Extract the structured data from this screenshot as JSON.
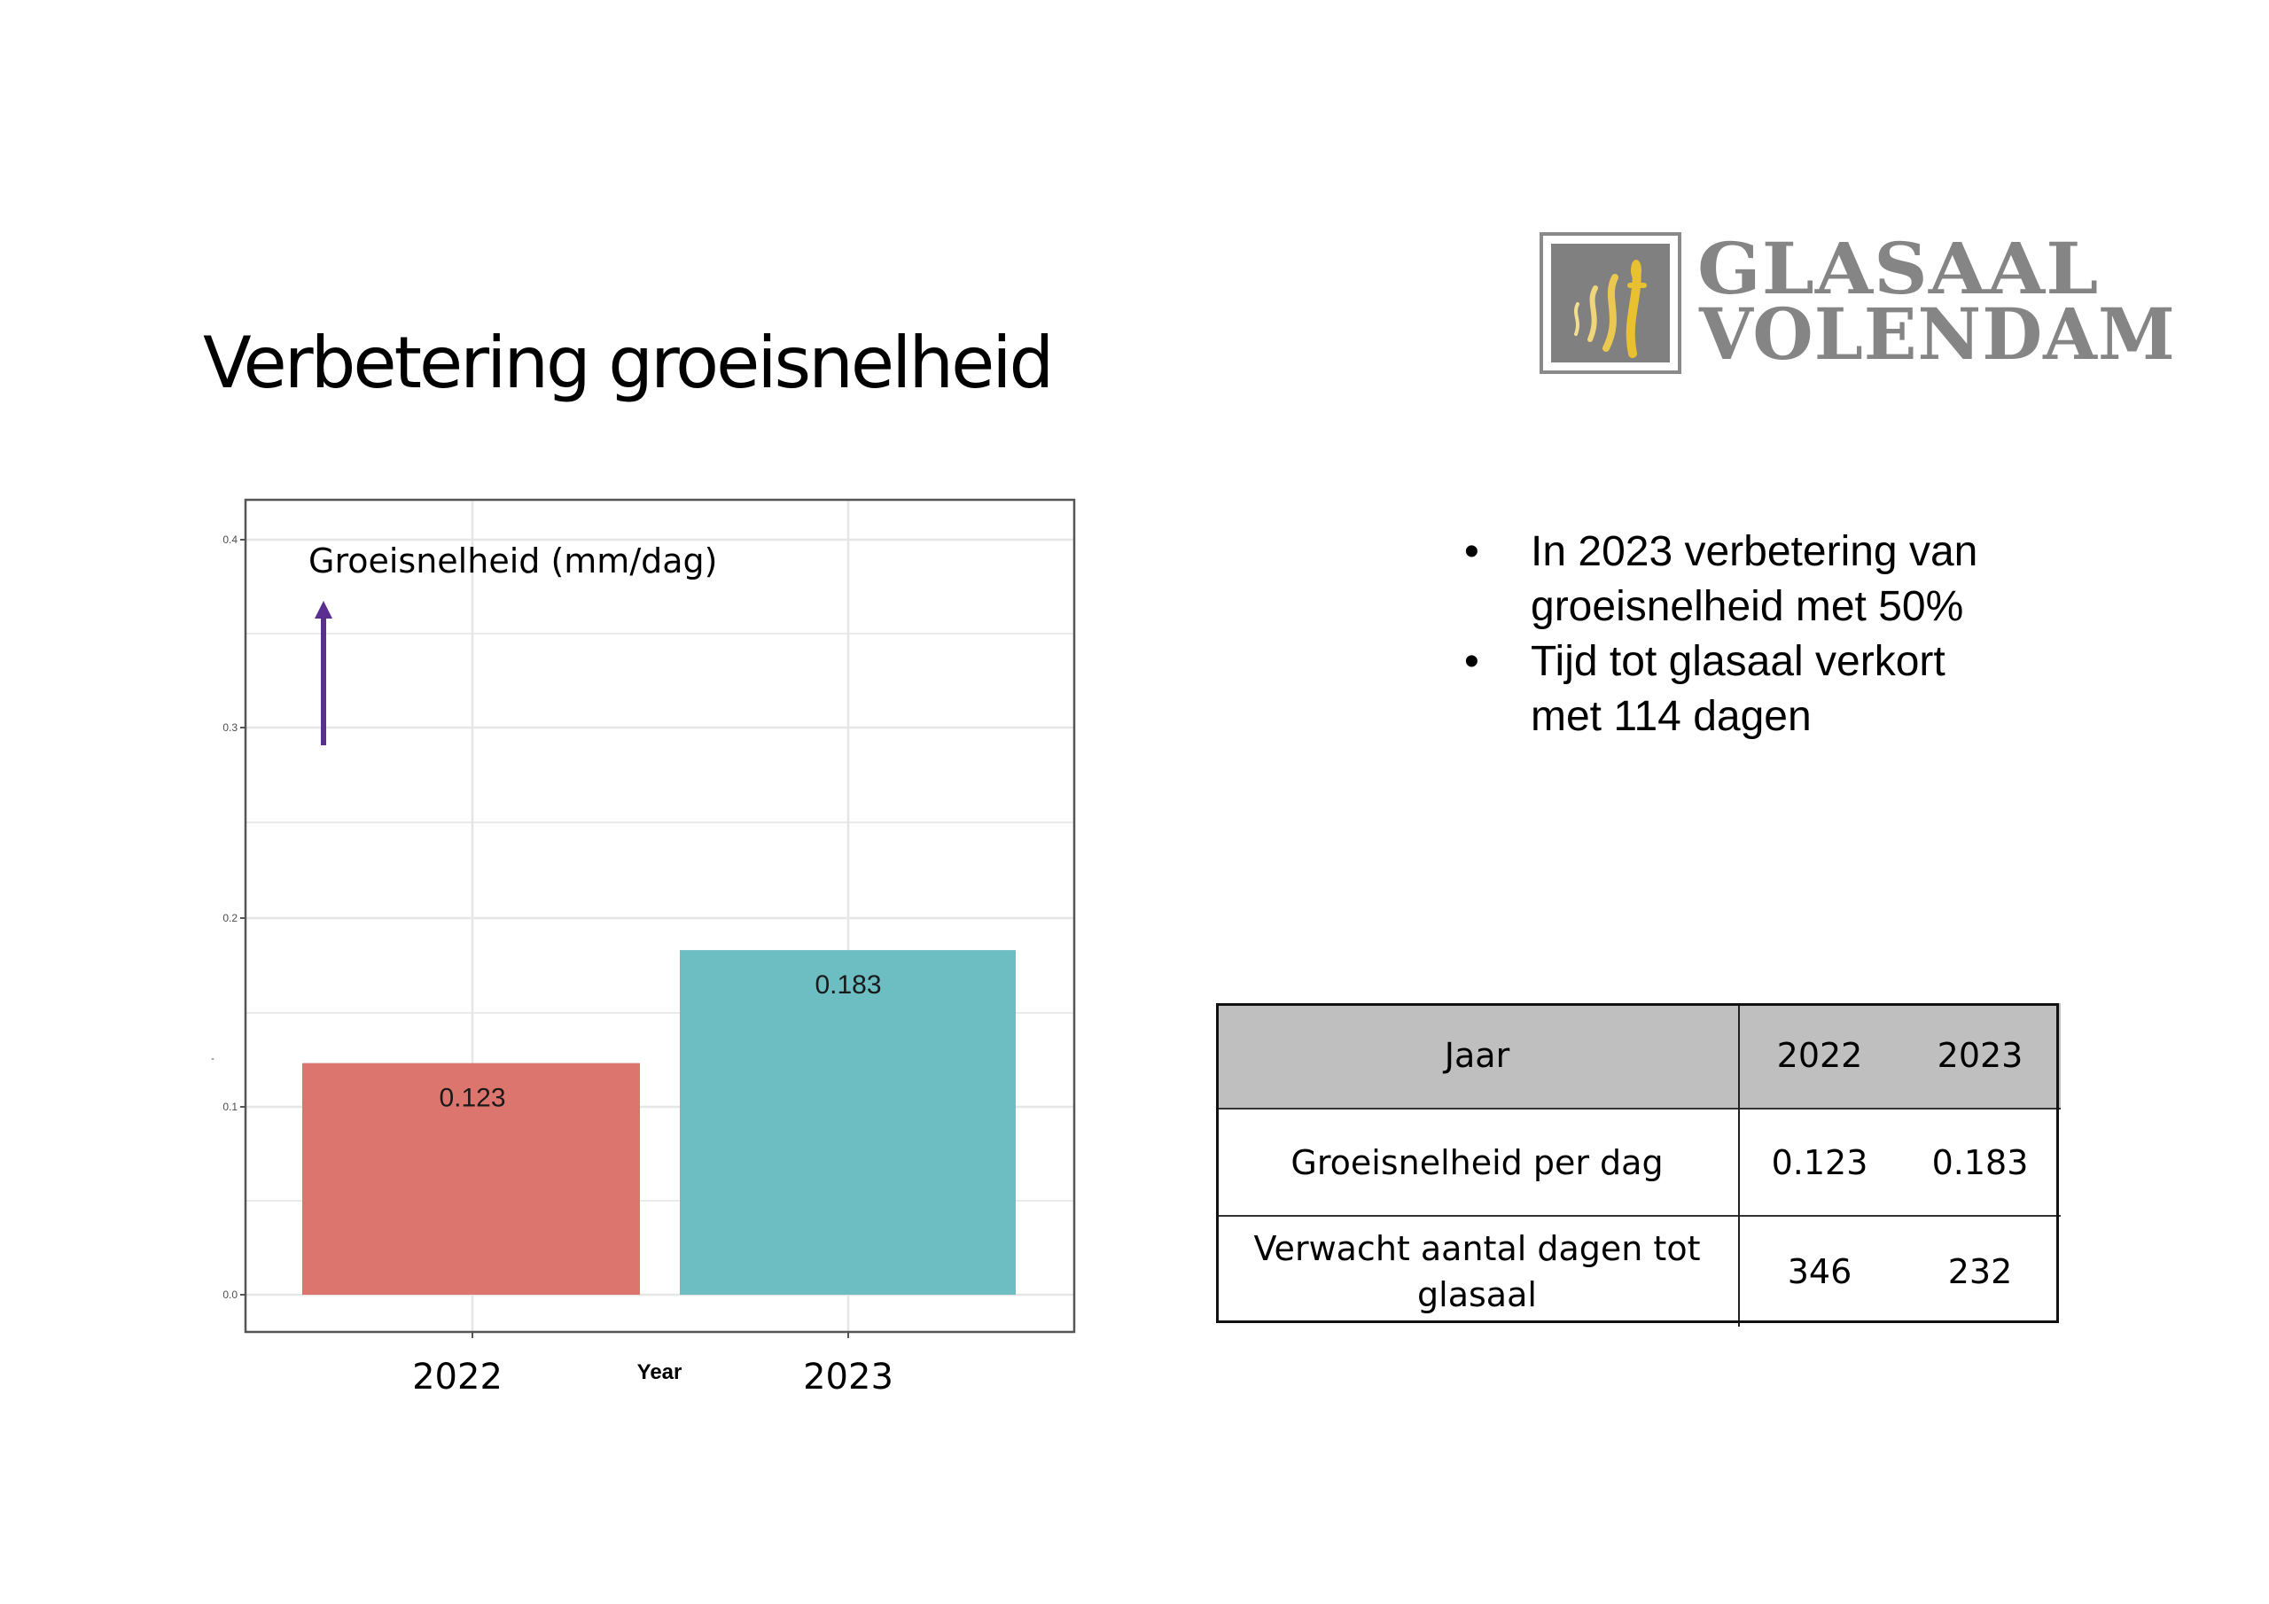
{
  "slide": {
    "title": "Verbetering groeisnelheid"
  },
  "logo": {
    "line1": "GLASAAL",
    "line2": "VOLENDAM",
    "colors": {
      "text": "#858585",
      "box": "#808080",
      "eel": "#e8c030",
      "eel_light": "#f0d57a"
    }
  },
  "bullets": [
    {
      "symbol": "•",
      "line1": "In 2023 verbetering van",
      "line2": "groeisnelheid met 50%"
    },
    {
      "symbol": "•",
      "line1": "Tijd tot glasaal verkort",
      "line2": "met 114 dagen"
    }
  ],
  "table": {
    "header": {
      "label": "Jaar",
      "col1": "2022",
      "col2": "2023"
    },
    "rows": [
      {
        "label": "Groeisnelheid per dag",
        "col1": "0.123",
        "col2": "0.183"
      },
      {
        "label_line1": "Verwacht aantal dagen tot",
        "label_line2": "glasaal",
        "col1": "346",
        "col2": "232"
      }
    ],
    "header_bg": "#bfbfbf"
  },
  "chart_data": {
    "type": "bar",
    "title": "",
    "annotation": "Groeisnelheid (mm/dag)",
    "categories": [
      "2022",
      "2023"
    ],
    "values": [
      0.123,
      0.183
    ],
    "value_labels": [
      "0.123",
      "0.183"
    ],
    "colors": [
      "#dc756e",
      "#6cbec2"
    ],
    "xlabel": "Year",
    "ylabel": "-",
    "yticks": [
      "0.0",
      "0.1",
      "0.2",
      "0.3",
      "0.4"
    ],
    "ylim": [
      -0.02,
      0.42
    ],
    "grid": true,
    "legend": "none",
    "arrow_color": "#5b2f91"
  }
}
